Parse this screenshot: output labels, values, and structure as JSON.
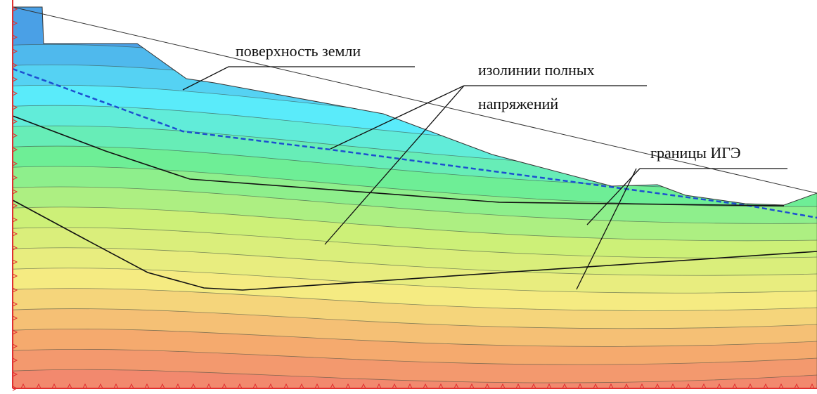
{
  "labels": {
    "ground_surface": "поверхность земли",
    "isolines": [
      "изолинии полных",
      "напряжений"
    ],
    "ige_boundaries": "границы ИГЭ"
  }
}
